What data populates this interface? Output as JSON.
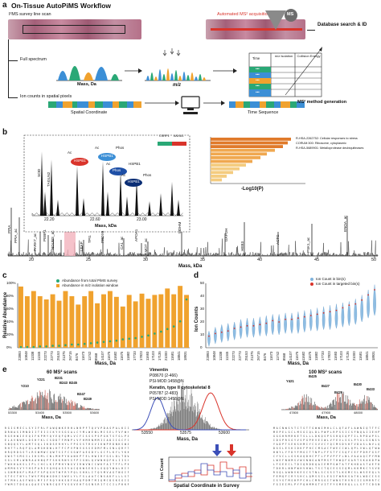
{
  "panel_a": {
    "letter": "a",
    "title": "On-Tissue AutoPiMS Workflow",
    "survey_label": "I²MS survey line scan",
    "ms_badge": "MS",
    "auto_ms2_label": "Automated MS² acquisition",
    "database_label": "Database search & ID",
    "full_spectrum_label": "Full spectrum",
    "mass_axis": "Mass, Da",
    "mz_axis": "m/z",
    "ion_counts_label": "Ion counts in spatial pixels",
    "spatial_coordinate_label": "Spatial Coordinate",
    "time_sequence_label": "Time Sequence",
    "ms2_method_label": "MS² method generation",
    "table_headers": [
      "Time",
      "m/z Isolation",
      "Collision Energy"
    ],
    "table_rows": [
      "•••",
      "•••",
      "•••",
      "•••",
      "•••"
    ],
    "colors": {
      "green": "#2aa876",
      "blue": "#3c8fd6",
      "orange": "#f0a22e",
      "red": "#d9342b",
      "tissue": "#b56b7e"
    }
  },
  "panel_b": {
    "letter": "b",
    "inset_labels": [
      "SOD",
      "TAGLN2",
      "Ac",
      "HSPB1",
      "Ac",
      "Phos",
      "HSPB1",
      "Ac",
      "Phos",
      "HSPB1",
      "Ac",
      "HSPB1",
      "Phos",
      "CSRP1",
      "ANXA1"
    ],
    "inset_ticks": [
      "22.20",
      "22.60",
      "23.00"
    ],
    "inset_axis": "Mass, kDa",
    "pathways": [
      "R-HSA-2262752: Cellular responses to stress",
      "CORUM:300: Ribosome, cytoplasmic",
      "R-HSA-5689901: Metalloprotease deubiquitinases"
    ],
    "pathway_axis": "-Log10(P)",
    "peak_labels": [
      "PPIA",
      "PPIA_ac",
      "PARK7_ac",
      "PEBP1",
      "NDUBS_ac",
      "LEAP",
      "TPI1",
      "PRDX6",
      "CA1_ac",
      "APOA1",
      "LMO7_ac",
      "MDHM",
      "GAPDH",
      "HEB3",
      "ACTG",
      "PSK1_ac",
      "ENOA_ac"
    ],
    "main_ticks": [
      "20",
      "25",
      "30",
      "35",
      "40",
      "45",
      "50"
    ],
    "main_axis": "Mass, kDa"
  },
  "panel_c": {
    "letter": "c",
    "ylabel": "Relative Abundance",
    "xlabel": "Mass, Da",
    "legend": [
      "Abundance from total PiMS survey",
      "Abundance in m/z isolation window"
    ],
    "yticks": [
      "0%",
      "20%",
      "40%",
      "60%",
      "80%",
      "100%"
    ],
    "chart_data": {
      "type": "bar",
      "categories": [
        "22893",
        "10848",
        "11338",
        "11345",
        "22273",
        "22773",
        "25153",
        "21375",
        "26715",
        "8476",
        "11673",
        "11742",
        "8568",
        "14107",
        "11675",
        "11682",
        "11675",
        "11882",
        "17733",
        "17823",
        "11693",
        "17103",
        "17135",
        "21000",
        "11681",
        "18841",
        "18931"
      ],
      "series": [
        {
          "name": "Abundance in m/z isolation window",
          "values": [
            95,
            80,
            88,
            80,
            75,
            83,
            73,
            88,
            80,
            67,
            80,
            88,
            69,
            83,
            88,
            79,
            64,
            82,
            72,
            84,
            76,
            82,
            83,
            92,
            83,
            96,
            82
          ]
        },
        {
          "name": "Abundance from total PiMS survey",
          "values": [
            1,
            1,
            1,
            2,
            2,
            3,
            3,
            4,
            5,
            5,
            6,
            7,
            8,
            9,
            10,
            11,
            13,
            14,
            15,
            17,
            19,
            22,
            25,
            29,
            33,
            41,
            75
          ]
        }
      ],
      "ylim": [
        0,
        100
      ]
    }
  },
  "panel_d": {
    "letter": "d",
    "ylabel": "Ion Counts",
    "xlabel": "Mass, Da",
    "legend": [
      "Ion Count in bin(s)",
      "Ion Count in targeted bin(s)"
    ],
    "yticks": [
      "0",
      "10",
      "20",
      "30",
      "40",
      "50"
    ],
    "chart_data": {
      "type": "scatter",
      "categories": [
        "22893",
        "10848",
        "11338",
        "11345",
        "22273",
        "22773",
        "25153",
        "21375",
        "26715",
        "8476",
        "11673",
        "11742",
        "8568",
        "14107",
        "11675",
        "11682",
        "11675",
        "11882",
        "17733",
        "17823",
        "11693",
        "17103",
        "17135",
        "21000",
        "11681",
        "18841",
        "18931"
      ],
      "medians": [
        7,
        9,
        10,
        11,
        12,
        13,
        14,
        14,
        15,
        15,
        16,
        16,
        17,
        17,
        17,
        18,
        19,
        19,
        20,
        20,
        21,
        22,
        23,
        24,
        26,
        29,
        31
      ],
      "maxima": [
        13,
        16,
        18,
        19,
        20,
        22,
        23,
        23,
        24,
        25,
        26,
        26,
        27,
        27,
        28,
        29,
        30,
        31,
        32,
        33,
        34,
        35,
        36,
        38,
        41,
        45,
        49
      ],
      "targeted": [
        9,
        11,
        12,
        13,
        15,
        16,
        17,
        17,
        18,
        19,
        21,
        20,
        22,
        22,
        23,
        24,
        25,
        26,
        27,
        28,
        29,
        31,
        33,
        34,
        37,
        41,
        45
      ],
      "ylim": [
        0,
        50
      ]
    }
  },
  "panel_e": {
    "letter": "e",
    "left_title": "60 MS² scans",
    "left_axis": "Mass, Da",
    "left_ions": [
      "Y210",
      "Y221",
      "B231",
      "B243",
      "B245",
      "B247",
      "B249"
    ],
    "left_ticks": [
      "53300",
      "53400",
      "53500",
      "53600"
    ],
    "center_title1": "Vimentin",
    "center_info1": "P08670 (2-466)",
    "center_info1b": "PSI-MOD:1458@N",
    "center_title2": "Keratin, type II cytoskeletal 8",
    "center_info2": "P05787 (2-483)",
    "center_info2b": "PSI-MOD:1458@N",
    "center_ticks": [
      "53550",
      "53575",
      "53600"
    ],
    "center_axis": "Mass, Da",
    "ion_count_label": "Ion Count",
    "spatial_label": "Spatial Coordinate in Survey",
    "right_title": "100 MS² scans",
    "right_axis": "Mass, Da",
    "right_ions": [
      "Y421",
      "B425",
      "B427",
      "B429",
      "B430",
      "B433"
    ],
    "right_ticks": [
      "47800",
      "47900",
      "48000"
    ]
  }
}
